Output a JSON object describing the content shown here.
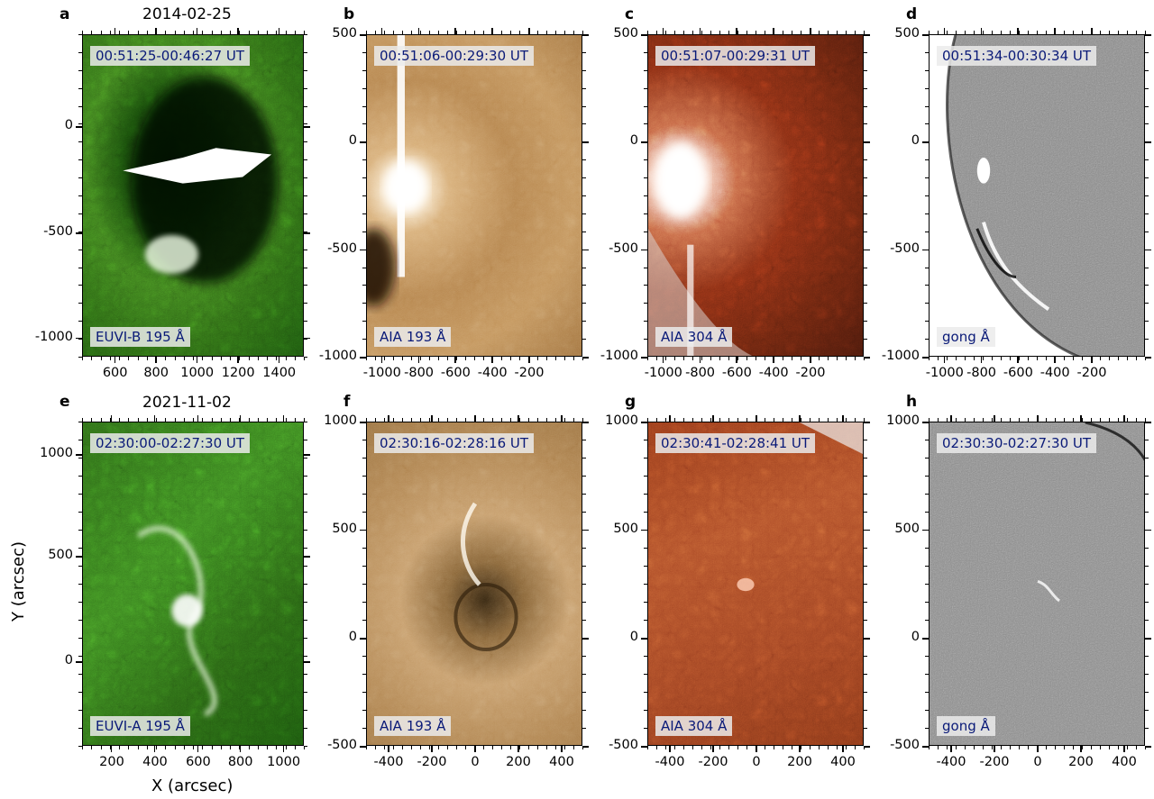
{
  "figure": {
    "ylabel": "Y (arcsec)",
    "xlabel": "X (arcsec)",
    "rows": [
      {
        "date": "2014-02-25",
        "panels": [
          {
            "letter": "a",
            "time": "00:51:25-00:46:27 UT",
            "instrument": "EUVI-B 195 Å",
            "kind": "euvi",
            "x_ticks": [
              "600",
              "800",
              "1000",
              "1200",
              "1400"
            ],
            "y_ticks": [
              "0",
              "-500",
              "-1000"
            ]
          },
          {
            "letter": "b",
            "time": "00:51:06-00:29:30 UT",
            "instrument": "AIA 193 Å",
            "kind": "aia193",
            "x_ticks": [
              "-1000",
              "-800",
              "-600",
              "-400",
              "-200"
            ],
            "y_ticks": [
              "500",
              "0",
              "-500",
              "-1000"
            ]
          },
          {
            "letter": "c",
            "time": "00:51:07-00:29:31 UT",
            "instrument": "AIA 304 Å",
            "kind": "aia304",
            "x_ticks": [
              "-1000",
              "-800",
              "-600",
              "-400",
              "-200"
            ],
            "y_ticks": [
              "500",
              "0",
              "-500",
              "-1000"
            ]
          },
          {
            "letter": "d",
            "time": "00:51:34-00:30:34 UT",
            "instrument": "gong Å",
            "kind": "gong",
            "x_ticks": [
              "-1000",
              "-800",
              "-600",
              "-400",
              "-200"
            ],
            "y_ticks": [
              "500",
              "0",
              "-500",
              "-1000"
            ]
          }
        ]
      },
      {
        "date": "2021-11-02",
        "panels": [
          {
            "letter": "e",
            "time": "02:30:00-02:27:30 UT",
            "instrument": "EUVI-A 195 Å",
            "kind": "euvi2",
            "x_ticks": [
              "200",
              "400",
              "600",
              "800",
              "1000"
            ],
            "y_ticks": [
              "1000",
              "500",
              "0"
            ]
          },
          {
            "letter": "f",
            "time": "02:30:16-02:28:16 UT",
            "instrument": "AIA 193 Å",
            "kind": "aia193b",
            "x_ticks": [
              "-400",
              "-200",
              "0",
              "200",
              "400"
            ],
            "y_ticks": [
              "1000",
              "500",
              "0",
              "-500"
            ]
          },
          {
            "letter": "g",
            "time": "02:30:41-02:28:41 UT",
            "instrument": "AIA 304 Å",
            "kind": "aia304b",
            "x_ticks": [
              "-400",
              "-200",
              "0",
              "200",
              "400"
            ],
            "y_ticks": [
              "1000",
              "500",
              "0",
              "-500"
            ]
          },
          {
            "letter": "h",
            "time": "02:30:30-02:27:30 UT",
            "instrument": "gong Å",
            "kind": "gongb",
            "x_ticks": [
              "-400",
              "-200",
              "0",
              "200",
              "400"
            ],
            "y_ticks": [
              "1000",
              "500",
              "0",
              "-500"
            ]
          }
        ]
      }
    ]
  }
}
